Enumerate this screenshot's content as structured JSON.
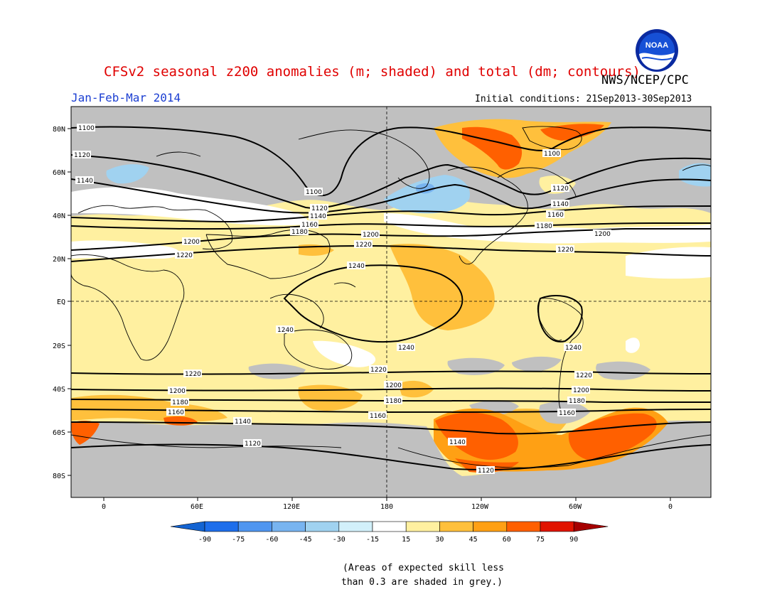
{
  "title": "CFSv2 seasonal z200 anomalies (m; shaded) and total (dm; contours)",
  "org": "NWS/NCEP/CPC",
  "logo_text": "NOAA",
  "period": "Jan-Feb-Mar 2014",
  "initial_conditions": "Initial conditions: 21Sep2013-30Sep2013",
  "lat_labels": [
    "80N",
    "60N",
    "40N",
    "20N",
    "EQ",
    "20S",
    "40S",
    "60S",
    "80S"
  ],
  "lon_labels": [
    "0",
    "60E",
    "120E",
    "180",
    "120W",
    "60W",
    "0"
  ],
  "contour_labels": [
    "1100",
    "1120",
    "1140",
    "1160",
    "1180",
    "1200",
    "1220",
    "1240"
  ],
  "colorbar": {
    "ticks": [
      "-90",
      "-75",
      "-60",
      "-45",
      "-30",
      "-15",
      "15",
      "30",
      "45",
      "60",
      "75",
      "90"
    ],
    "colors": [
      "#1464d2",
      "#1e6eeb",
      "#5096f0",
      "#78b4f0",
      "#a0d2f0",
      "#d2f0fa",
      "#ffffff",
      "#fff0a0",
      "#ffc03c",
      "#ffa014",
      "#ff6000",
      "#e11400",
      "#a50000"
    ]
  },
  "skill_note_line1": "(Areas of expected skill less",
  "skill_note_line2": "than 0.3 are shaded in grey.)"
}
